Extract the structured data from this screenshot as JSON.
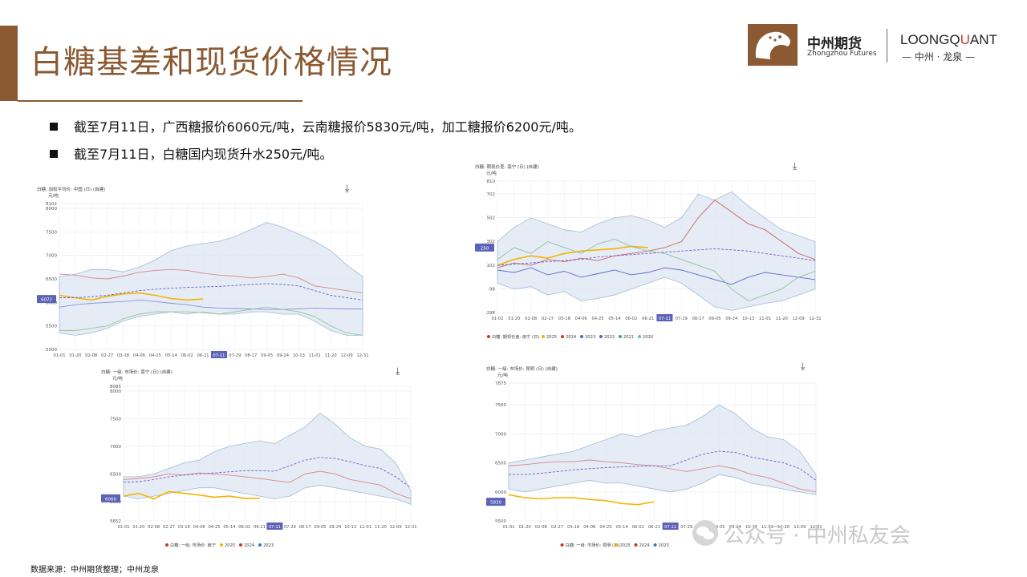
{
  "header": {
    "title": "白糖基差和现货价格情况",
    "brand_cn": "中州期货",
    "brand_en": "Zhongzhou Futures",
    "brand2_pre": "LOONGQ",
    "brand2_q": "U",
    "brand2_post": "ANT",
    "brand2_sub": "— 中州 · 龙泉 —"
  },
  "bullets": [
    "截至7月11日，广西糖报价6060元/吨，云南糖报价5830元/吨，加工糖报价6200元/吨。",
    "截至7月11日，白糖国内现货升水250元/吨。"
  ],
  "footer": {
    "source": "数据来源：中州期货整理；中州龙泉",
    "watermark": "公众号 · 中州私友会"
  },
  "colors": {
    "accent": "#8b5a32",
    "y2025": "#f5b400",
    "y2024": "#c0392b",
    "y2023": "#3d72c4"
  },
  "chart_data": [
    {
      "type": "line",
      "title": "白糖: 加权平均价: 中国 (日) (自建)",
      "ylabel": "元/吨",
      "ylim": [
        5000,
        8102
      ],
      "yticks": [
        "8102",
        "8000",
        "7500",
        "7000",
        "6500",
        "6000",
        "5500",
        "5000"
      ],
      "ytick_vals": [
        8102,
        8000,
        7500,
        7000,
        6500,
        6000,
        5500,
        5000
      ],
      "xticks": [
        "01-01",
        "01-20",
        "02-08",
        "02-27",
        "03-18",
        "04-06",
        "04-25",
        "05-14",
        "06-02",
        "06-21",
        "07-11",
        "07-29",
        "08-17",
        "09-05",
        "09-24",
        "10-13",
        "11-01",
        "11-20",
        "12-09",
        "12-31"
      ],
      "current_label": "6072",
      "current_value": 6072,
      "band_upper": [
        6550,
        6600,
        6700,
        6700,
        6650,
        6750,
        6900,
        7100,
        7200,
        7250,
        7300,
        7400,
        7550,
        7700,
        7600,
        7450,
        7300,
        7100,
        6800,
        6550
      ],
      "band_lower": [
        5350,
        5300,
        5350,
        5450,
        5600,
        5700,
        5750,
        5800,
        5750,
        5800,
        5750,
        5750,
        5800,
        5800,
        5750,
        5750,
        5600,
        5400,
        5300,
        5300
      ],
      "series": [
        {
          "name": "2025",
          "values": [
            6150,
            6100,
            6050,
            6130,
            6180,
            6200,
            6150,
            6080,
            6050,
            6072
          ],
          "color": "#f5b400",
          "dashed": false
        },
        {
          "name": "2024",
          "values": [
            6600,
            6580,
            6520,
            6500,
            6560,
            6640,
            6680,
            6700,
            6680,
            6620,
            6580,
            6560,
            6520,
            6550,
            6600,
            6520,
            6350,
            6300,
            6250,
            6200
          ],
          "color": "#d9868d",
          "dashed": false
        },
        {
          "name": "2023",
          "values": [
            5900,
            5950,
            5980,
            6000,
            6020,
            6050,
            6020,
            5980,
            5950,
            5900,
            5880,
            5870,
            5860,
            5850,
            5850,
            5860,
            5880,
            5870,
            5860,
            5860
          ],
          "color": "#8c92d8",
          "dashed": false
        },
        {
          "name": "avg",
          "values": [
            6100,
            6100,
            6120,
            6150,
            6200,
            6250,
            6280,
            6300,
            6320,
            6330,
            6340,
            6360,
            6380,
            6400,
            6380,
            6350,
            6250,
            6150,
            6100,
            6050
          ],
          "color": "#6a5acd",
          "dashed": true
        },
        {
          "name": "2022",
          "values": [
            5400,
            5400,
            5450,
            5500,
            5650,
            5750,
            5800,
            5800,
            5800,
            5780,
            5750,
            5800,
            5850,
            5900,
            5850,
            5800,
            5700,
            5500,
            5350,
            5300
          ],
          "color": "#90c890",
          "dashed": false
        }
      ]
    },
    {
      "type": "line",
      "title": "白糖: 期现价差: 南宁 (日) (自建)",
      "ylabel": "元/吨",
      "ylim": [
        -298,
        810
      ],
      "yticks": [
        "810",
        "702",
        "502",
        "302",
        "102",
        "-98",
        "-298"
      ],
      "ytick_vals": [
        810,
        702,
        502,
        302,
        102,
        -98,
        -298
      ],
      "xticks": [
        "01-01",
        "01-20",
        "02-08",
        "02-27",
        "03-18",
        "04-06",
        "04-25",
        "05-14",
        "06-02",
        "06-21",
        "07-11",
        "07-29",
        "08-17",
        "09-05",
        "09-24",
        "10-13",
        "11-01",
        "11-20",
        "12-09",
        "12-31"
      ],
      "current_label": "250",
      "current_value": 250,
      "legend": [
        "白糖: 期现价差: 南宁 (日)",
        "2025",
        "2024",
        "2023",
        "2022",
        "2021",
        "2020"
      ],
      "band_upper": [
        300,
        420,
        500,
        450,
        400,
        380,
        450,
        500,
        520,
        480,
        420,
        500,
        700,
        650,
        720,
        600,
        500,
        400,
        350,
        300
      ],
      "band_lower": [
        -50,
        -100,
        -80,
        -150,
        -120,
        -200,
        -180,
        -150,
        -100,
        -50,
        0,
        -50,
        -150,
        -250,
        -280,
        -250,
        -220,
        -200,
        -150,
        -100
      ],
      "series": [
        {
          "name": "2025",
          "values": [
            100,
            150,
            180,
            160,
            200,
            220,
            230,
            240,
            260,
            250
          ],
          "color": "#f5b400",
          "dashed": false
        },
        {
          "name": "2024",
          "values": [
            80,
            120,
            100,
            150,
            130,
            160,
            140,
            180,
            200,
            220,
            250,
            300,
            500,
            650,
            550,
            450,
            400,
            300,
            200,
            150
          ],
          "color": "#c86464",
          "dashed": false
        },
        {
          "name": "2023",
          "values": [
            60,
            40,
            80,
            20,
            50,
            0,
            30,
            60,
            20,
            40,
            80,
            60,
            20,
            -20,
            -60,
            0,
            40,
            20,
            0,
            -20
          ],
          "color": "#5a6ad0",
          "dashed": false
        },
        {
          "name": "avg",
          "values": [
            100,
            110,
            120,
            130,
            140,
            150,
            170,
            180,
            190,
            200,
            210,
            220,
            230,
            240,
            230,
            220,
            200,
            180,
            160,
            140
          ],
          "color": "#6a5acd",
          "dashed": true
        },
        {
          "name": "2021",
          "values": [
            150,
            250,
            200,
            300,
            250,
            200,
            280,
            320,
            260,
            220,
            200,
            150,
            100,
            50,
            -100,
            -200,
            -150,
            -100,
            0,
            50
          ],
          "color": "#8cbfa4",
          "dashed": false
        }
      ]
    },
    {
      "type": "line",
      "title": "白糖: 一级: 市场价: 南宁 (日) (自建)",
      "ylabel": "元/吨",
      "ylim": [
        5652,
        8085
      ],
      "yticks": [
        "8085",
        "8000",
        "7500",
        "7000",
        "6500",
        "6000",
        "5652"
      ],
      "ytick_vals": [
        8085,
        8000,
        7500,
        7000,
        6500,
        6000,
        5652
      ],
      "xticks": [
        "01-01",
        "01-20",
        "02-08",
        "02-27",
        "03-18",
        "04-06",
        "04-25",
        "05-14",
        "06-02",
        "06-21",
        "07-11",
        "07-29",
        "08-17",
        "09-05",
        "09-24",
        "10-13",
        "11-01",
        "11-20",
        "12-09",
        "12-31"
      ],
      "current_label": "6060",
      "current_value": 6060,
      "legend": [
        "白糖: 一级: 市场价: 南宁",
        "2025",
        "2024",
        "2023"
      ],
      "band_upper": [
        6450,
        6450,
        6500,
        6600,
        6700,
        6750,
        6900,
        7000,
        7050,
        7100,
        7050,
        7200,
        7350,
        7600,
        7400,
        7150,
        7000,
        6950,
        6700,
        6200
      ],
      "band_lower": [
        6100,
        6050,
        6100,
        6150,
        6200,
        6250,
        6250,
        6200,
        6150,
        6100,
        6050,
        6100,
        6250,
        6300,
        6250,
        6200,
        6150,
        6100,
        6050,
        5950
      ],
      "series": [
        {
          "name": "2025",
          "values": [
            6100,
            6150,
            6050,
            6180,
            6150,
            6120,
            6080,
            6100,
            6060,
            6060
          ],
          "color": "#f5b400",
          "dashed": false
        },
        {
          "name": "2024",
          "values": [
            6400,
            6420,
            6450,
            6500,
            6480,
            6520,
            6500,
            6480,
            6450,
            6420,
            6380,
            6350,
            6500,
            6550,
            6500,
            6400,
            6350,
            6300,
            6150,
            6050
          ],
          "color": "#d9868d",
          "dashed": false
        },
        {
          "name": "avg",
          "values": [
            6350,
            6360,
            6400,
            6450,
            6480,
            6500,
            6520,
            6540,
            6560,
            6560,
            6550,
            6650,
            6750,
            6800,
            6780,
            6720,
            6650,
            6600,
            6450,
            6250
          ],
          "color": "#6a5acd",
          "dashed": true
        }
      ]
    },
    {
      "type": "line",
      "title": "白糖: 一级: 市场价: 昆明 (日) (自建)",
      "ylabel": "元/吨",
      "ylim": [
        5500,
        7875
      ],
      "yticks": [
        "7875",
        "7500",
        "7000",
        "6500",
        "6000",
        "5500"
      ],
      "ytick_vals": [
        7875,
        7500,
        7000,
        6500,
        6000,
        5500
      ],
      "xticks": [
        "01-01",
        "01-20",
        "02-08",
        "02-27",
        "03-18",
        "04-06",
        "04-25",
        "05-14",
        "06-02",
        "06-21",
        "07-11",
        "07-29",
        "08-17",
        "09-05",
        "09-24",
        "10-13",
        "11-01",
        "11-20",
        "12-09",
        "12-31"
      ],
      "current_label": "5830",
      "current_value": 5830,
      "legend": [
        "白糖: 一级: 市场价: 昆明 (日)",
        "2025",
        "2024",
        "2023"
      ],
      "band_upper": [
        6500,
        6550,
        6600,
        6650,
        6700,
        6800,
        6900,
        7000,
        6950,
        7050,
        7100,
        7150,
        7300,
        7500,
        7350,
        7100,
        6950,
        6900,
        6700,
        6300
      ],
      "band_lower": [
        6050,
        6000,
        6050,
        6100,
        6150,
        6200,
        6150,
        6150,
        6100,
        6050,
        6000,
        6050,
        6150,
        6300,
        6250,
        6150,
        6100,
        6050,
        6000,
        5950
      ],
      "series": [
        {
          "name": "2025",
          "values": [
            5950,
            5900,
            5880,
            5900,
            5900,
            5870,
            5850,
            5800,
            5780,
            5830
          ],
          "color": "#f5b400",
          "dashed": false
        },
        {
          "name": "2024",
          "values": [
            6450,
            6470,
            6500,
            6520,
            6520,
            6550,
            6520,
            6500,
            6470,
            6450,
            6400,
            6350,
            6400,
            6450,
            6400,
            6300,
            6250,
            6150,
            6050,
            6000
          ],
          "color": "#d9868d",
          "dashed": false
        },
        {
          "name": "avg",
          "values": [
            6300,
            6300,
            6320,
            6350,
            6380,
            6400,
            6420,
            6430,
            6440,
            6450,
            6450,
            6550,
            6650,
            6700,
            6680,
            6600,
            6550,
            6500,
            6400,
            6200
          ],
          "color": "#6a5acd",
          "dashed": true
        }
      ]
    }
  ]
}
